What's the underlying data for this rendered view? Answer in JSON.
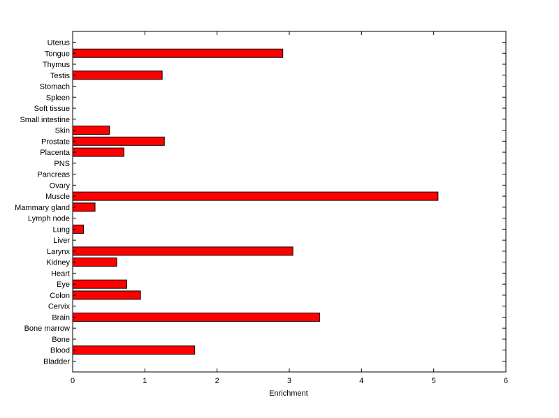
{
  "chart_data": {
    "type": "bar",
    "orientation": "horizontal",
    "categories": [
      "Bladder",
      "Blood",
      "Bone",
      "Bone marrow",
      "Brain",
      "Cervix",
      "Colon",
      "Eye",
      "Heart",
      "Kidney",
      "Larynx",
      "Liver",
      "Lung",
      "Lymph node",
      "Mammary gland",
      "Muscle",
      "Ovary",
      "Pancreas",
      "PNS",
      "Placenta",
      "Prostate",
      "Skin",
      "Small intestine",
      "Soft tissue",
      "Spleen",
      "Stomach",
      "Testis",
      "Thymus",
      "Tongue",
      "Uterus"
    ],
    "values": [
      0,
      1.69,
      0,
      0,
      3.42,
      0,
      0.94,
      0.75,
      0,
      0.61,
      3.05,
      0,
      0.15,
      0,
      0.31,
      5.06,
      0,
      0,
      0,
      0.71,
      1.27,
      0.51,
      0,
      0,
      0,
      0,
      1.24,
      0,
      2.91,
      0
    ],
    "xlabel": "Enrichment",
    "ylabel": "",
    "title": "",
    "xlim": [
      0,
      6
    ],
    "xticks": [
      "0",
      "1",
      "2",
      "3",
      "4",
      "5",
      "6"
    ],
    "grid": false,
    "colors": {
      "bar_fill": "#ff0000",
      "bar_stroke": "#000000",
      "axis": "#000000"
    }
  }
}
